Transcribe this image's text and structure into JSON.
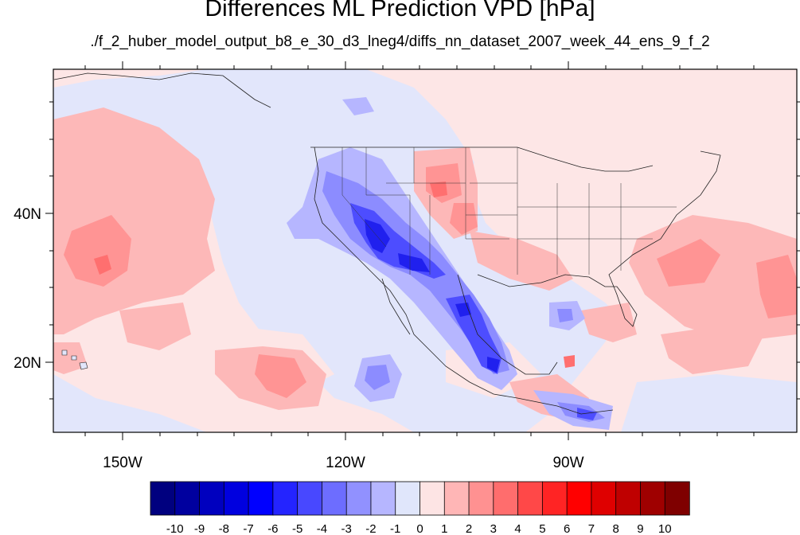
{
  "title": "Differences ML Prediction VPD [hPa]",
  "subtitle": "./f_2_huber_model_output_b8_e_30_d3_lneg4/diffs_nn_dataset_2007_week_44_ens_9_f_2",
  "map": {
    "lon_range": [
      -160,
      -62
    ],
    "lat_range": [
      10,
      60
    ],
    "x_ticks": [
      "150W",
      "120W",
      "90W"
    ],
    "y_ticks": [
      "40N",
      "20N"
    ]
  },
  "colorbar": {
    "labels": [
      "-10",
      "-9",
      "-8",
      "-7",
      "-6",
      "-5",
      "-4",
      "-3",
      "-2",
      "-1",
      "0",
      "1",
      "2",
      "3",
      "4",
      "5",
      "6",
      "7",
      "8",
      "9",
      "10"
    ],
    "colors": [
      "#00007f",
      "#00009f",
      "#0000bf",
      "#0000df",
      "#0000ff",
      "#2424ff",
      "#4848ff",
      "#6d6dff",
      "#9191ff",
      "#b6b6ff",
      "#e0e6fb",
      "#fde4e4",
      "#ffb6b6",
      "#ff9191",
      "#ff6d6d",
      "#ff4848",
      "#ff2424",
      "#ff0000",
      "#df0000",
      "#bf0000",
      "#9f0000",
      "#7f0000"
    ]
  }
}
